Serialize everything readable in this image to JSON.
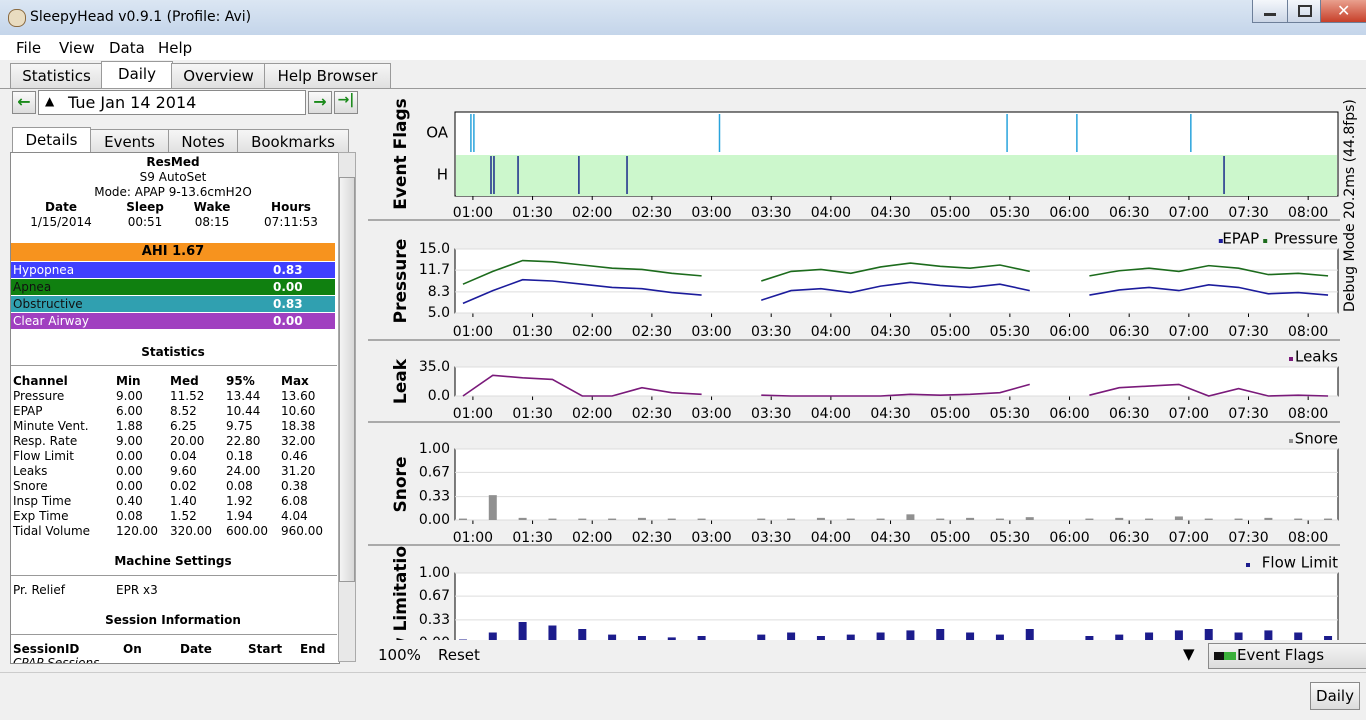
{
  "window": {
    "title": "SleepyHead v0.9.1  (Profile: Avi)"
  },
  "menu": [
    "File",
    "View",
    "Data",
    "Help"
  ],
  "tabs": [
    "Statistics",
    "Daily",
    "Overview",
    "Help Browser"
  ],
  "date": "Tue Jan 14 2014",
  "subtabs": [
    "Details",
    "Events",
    "Notes",
    "Bookmarks"
  ],
  "details": {
    "machine": [
      "ResMed",
      "S9 AutoSet",
      "Mode: APAP 9-13.6cmH2O"
    ],
    "summary": {
      "headers": [
        "Date",
        "Sleep",
        "Wake",
        "Hours"
      ],
      "values": [
        "1/15/2014",
        "00:51",
        "08:15",
        "07:11:53"
      ]
    },
    "ahi": "AHI 1.67",
    "indices": [
      [
        "Hypopnea",
        "0.83"
      ],
      [
        "Apnea",
        "0.00"
      ],
      [
        "Obstructive",
        "0.83"
      ],
      [
        "Clear Airway",
        "0.00"
      ]
    ],
    "statistics": {
      "title": "Statistics",
      "headers": [
        "Channel",
        "Min",
        "Med",
        "95%",
        "Max"
      ],
      "rows": [
        [
          "Pressure",
          "9.00",
          "11.52",
          "13.44",
          "13.60"
        ],
        [
          "EPAP",
          "6.00",
          "8.52",
          "10.44",
          "10.60"
        ],
        [
          "Minute Vent.",
          "1.88",
          "6.25",
          "9.75",
          "18.38"
        ],
        [
          "Resp. Rate",
          "9.00",
          "20.00",
          "22.80",
          "32.00"
        ],
        [
          "Flow Limit",
          "0.00",
          "0.04",
          "0.18",
          "0.46"
        ],
        [
          "Leaks",
          "0.00",
          "9.60",
          "24.00",
          "31.20"
        ],
        [
          "Snore",
          "0.00",
          "0.02",
          "0.08",
          "0.38"
        ],
        [
          "Insp Time",
          "0.40",
          "1.40",
          "1.92",
          "6.08"
        ],
        [
          "Exp Time",
          "0.08",
          "1.52",
          "1.94",
          "4.04"
        ],
        [
          "Tidal Volume",
          "120.00",
          "320.00",
          "600.00",
          "960.00"
        ]
      ]
    },
    "machine_settings": {
      "title": "Machine Settings",
      "rows": [
        [
          "Pr. Relief",
          "EPR x3"
        ]
      ]
    },
    "session_info": {
      "title": "Session Information",
      "headers": [
        "SessionID",
        "On",
        "Date",
        "Start",
        "End"
      ],
      "group": "CPAP Sessions"
    }
  },
  "time": {
    "xlim": [
      51,
      495
    ],
    "xticks": [
      {
        "value": 60,
        "label": "01:00"
      },
      {
        "value": 90,
        "label": "01:30"
      },
      {
        "value": 120,
        "label": "02:00"
      },
      {
        "value": 150,
        "label": "02:30"
      },
      {
        "value": 180,
        "label": "03:00"
      },
      {
        "value": 210,
        "label": "03:30"
      },
      {
        "value": 240,
        "label": "04:00"
      },
      {
        "value": 270,
        "label": "04:30"
      },
      {
        "value": 300,
        "label": "05:00"
      },
      {
        "value": 330,
        "label": "05:30"
      },
      {
        "value": 360,
        "label": "06:00"
      },
      {
        "value": 390,
        "label": "06:30"
      },
      {
        "value": 420,
        "label": "07:00"
      },
      {
        "value": 450,
        "label": "07:30"
      },
      {
        "value": 480,
        "label": "08:00"
      }
    ]
  },
  "sample_x": [
    55,
    70,
    85,
    100,
    115,
    130,
    145,
    160,
    175,
    190,
    205,
    220,
    235,
    250,
    265,
    280,
    295,
    310,
    325,
    340,
    355,
    370,
    385,
    400,
    415,
    430,
    445,
    460,
    475,
    490
  ],
  "graphs": [
    {
      "title": "Event Flags",
      "kind": "flags",
      "rows": [
        {
          "name": "OA",
          "color": "#29a3dc",
          "fill": "#ffffff",
          "events": [
            59,
            60.5,
            184,
            328.6,
            363.7,
            421
          ]
        },
        {
          "name": "H",
          "color": "#1a2a8a",
          "fill": "#ccf7cc",
          "events": [
            69.1,
            70.6,
            82.7,
            113.3,
            137.5,
            437.7
          ]
        }
      ]
    },
    {
      "title": "Pressure",
      "kind": "line",
      "ylim": [
        5,
        15
      ],
      "yticks": [
        {
          "value": 5,
          "label": "5.0"
        },
        8.3,
        11.7,
        {
          "value": 15,
          "label": "15.0"
        }
      ],
      "series": [
        {
          "name": "EPAP",
          "color": "#1c1c9c",
          "values": [
            6.5,
            8.5,
            10.2,
            10.0,
            9.5,
            9.0,
            8.8,
            8.2,
            7.8,
            null,
            7.0,
            8.5,
            8.8,
            8.2,
            9.2,
            9.8,
            9.3,
            9.0,
            9.5,
            8.5,
            null,
            7.8,
            8.6,
            9.0,
            8.5,
            9.4,
            9.0,
            8.0,
            8.2,
            7.8
          ]
        },
        {
          "name": "Pressure",
          "color": "#1c6b1c",
          "values": [
            9.5,
            11.5,
            13.2,
            13.0,
            12.5,
            12.0,
            11.8,
            11.2,
            10.8,
            null,
            10.0,
            11.5,
            11.8,
            11.2,
            12.2,
            12.8,
            12.3,
            12.0,
            12.5,
            11.5,
            null,
            10.8,
            11.6,
            12.0,
            11.5,
            12.4,
            12.0,
            11.0,
            11.2,
            10.8
          ]
        }
      ]
    },
    {
      "title": "Leak",
      "kind": "line",
      "ylim": [
        0,
        35
      ],
      "yticks": [
        {
          "value": 0,
          "label": "0.0"
        },
        {
          "value": 35,
          "label": "35.0"
        }
      ],
      "series": [
        {
          "name": "Leaks",
          "color": "#7a1a7a",
          "values": [
            0,
            25,
            22,
            20,
            0,
            0,
            10,
            4,
            2,
            null,
            1,
            0,
            0,
            0,
            0,
            2,
            1,
            2,
            4,
            14,
            null,
            1,
            10,
            12,
            14,
            0,
            9,
            0,
            1,
            0
          ]
        }
      ]
    },
    {
      "title": "Snore",
      "kind": "bars",
      "ylim": [
        0,
        1
      ],
      "yticks": [
        {
          "value": 0,
          "label": "0.00"
        },
        0.33,
        0.67,
        {
          "value": 1,
          "label": "1.00"
        }
      ],
      "series": [
        {
          "name": "Snore",
          "color": "#909090",
          "values": [
            0.02,
            0.35,
            0.03,
            0.02,
            0.02,
            0.02,
            0.03,
            0.02,
            0.02,
            null,
            0.02,
            0.02,
            0.03,
            0.02,
            0.02,
            0.08,
            0.02,
            0.03,
            0.02,
            0.04,
            null,
            0.02,
            0.03,
            0.02,
            0.05,
            0.02,
            0.02,
            0.03,
            0.02,
            0.02
          ]
        }
      ]
    },
    {
      "title": "Flow Limitation",
      "kind": "bars",
      "ylim": [
        0,
        1
      ],
      "yticks": [
        {
          "value": 0,
          "label": "0.00"
        },
        0.33,
        0.67,
        {
          "value": 1,
          "label": "1.00"
        }
      ],
      "series": [
        {
          "name": "Flow Limit",
          "color": "#1c1c8c",
          "values": [
            0.05,
            0.15,
            0.3,
            0.25,
            0.2,
            0.12,
            0.1,
            0.08,
            0.1,
            null,
            0.12,
            0.15,
            0.1,
            0.12,
            0.15,
            0.18,
            0.2,
            0.15,
            0.12,
            0.2,
            null,
            0.1,
            0.12,
            0.15,
            0.18,
            0.2,
            0.15,
            0.18,
            0.15,
            0.1
          ]
        }
      ]
    }
  ],
  "debug": "Debug Mode 20.2ms (44.8fps)",
  "footer": {
    "zoom": "100%",
    "reset": "Reset",
    "graph_select": "Event Flags"
  },
  "status": {
    "button": "Daily"
  }
}
